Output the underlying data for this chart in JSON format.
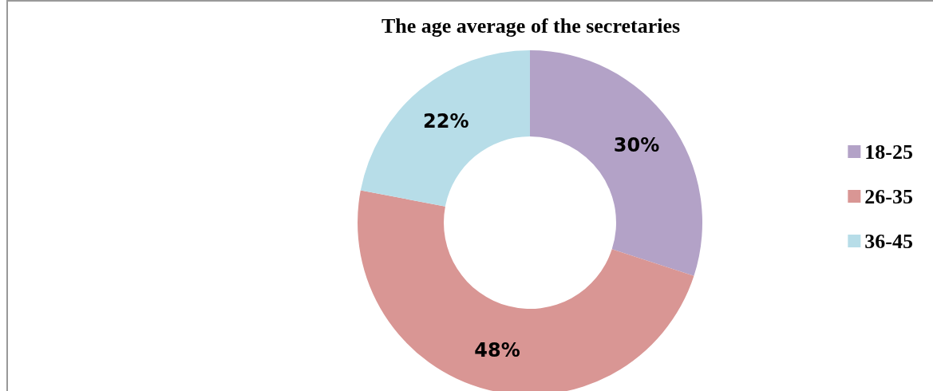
{
  "chart_data": {
    "type": "donut",
    "title": "The age average of the secretaries",
    "categories": [
      "18-25",
      "26-35",
      "36-45"
    ],
    "values": [
      30,
      48,
      22
    ],
    "colors": [
      "#b3a2c7",
      "#d99694",
      "#b7dde8"
    ],
    "value_labels": [
      "30%",
      "48%",
      "22%"
    ],
    "legend": "right"
  }
}
